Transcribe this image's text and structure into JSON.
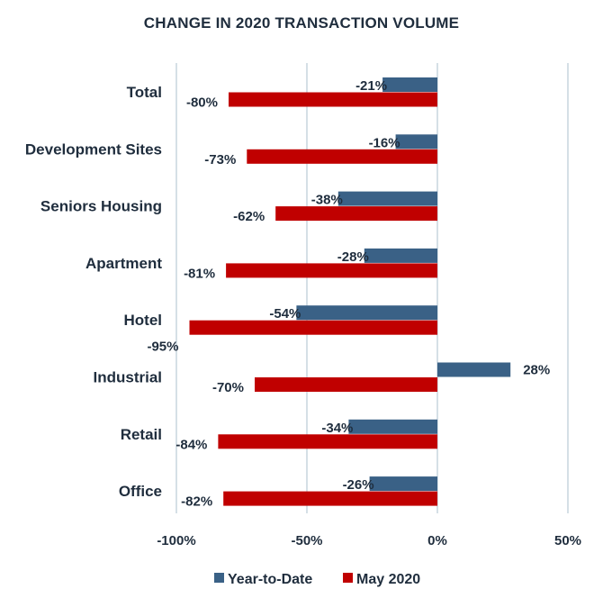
{
  "chart_data": {
    "type": "bar",
    "orientation": "horizontal",
    "title": "CHANGE IN 2020 TRANSACTION VOLUME",
    "xlabel": "",
    "ylabel": "",
    "categories": [
      "Total",
      "Development Sites",
      "Seniors Housing",
      "Apartment",
      "Hotel",
      "Industrial",
      "Retail",
      "Office"
    ],
    "series": [
      {
        "name": "Year-to-Date",
        "color": "#3a6186",
        "values": [
          -21,
          -16,
          -38,
          -28,
          -54,
          28,
          -34,
          -26
        ],
        "labels": [
          "-21%",
          "-16%",
          "-38%",
          "-28%",
          "-54%",
          "28%",
          "-34%",
          "-26%"
        ]
      },
      {
        "name": "May 2020",
        "color": "#c00000",
        "values": [
          -80,
          -73,
          -62,
          -81,
          -95,
          -70,
          -84,
          -82
        ],
        "labels": [
          "-80%",
          "-73%",
          "-62%",
          "-81%",
          "-95%",
          "-70%",
          "-84%",
          "-82%"
        ]
      }
    ],
    "xlim": [
      -100,
      50
    ],
    "xticks": [
      -100,
      -50,
      0,
      50
    ],
    "xtick_labels": [
      "-100%",
      "-50%",
      "0%",
      "50%"
    ],
    "grid": true,
    "legend": "bottom"
  }
}
